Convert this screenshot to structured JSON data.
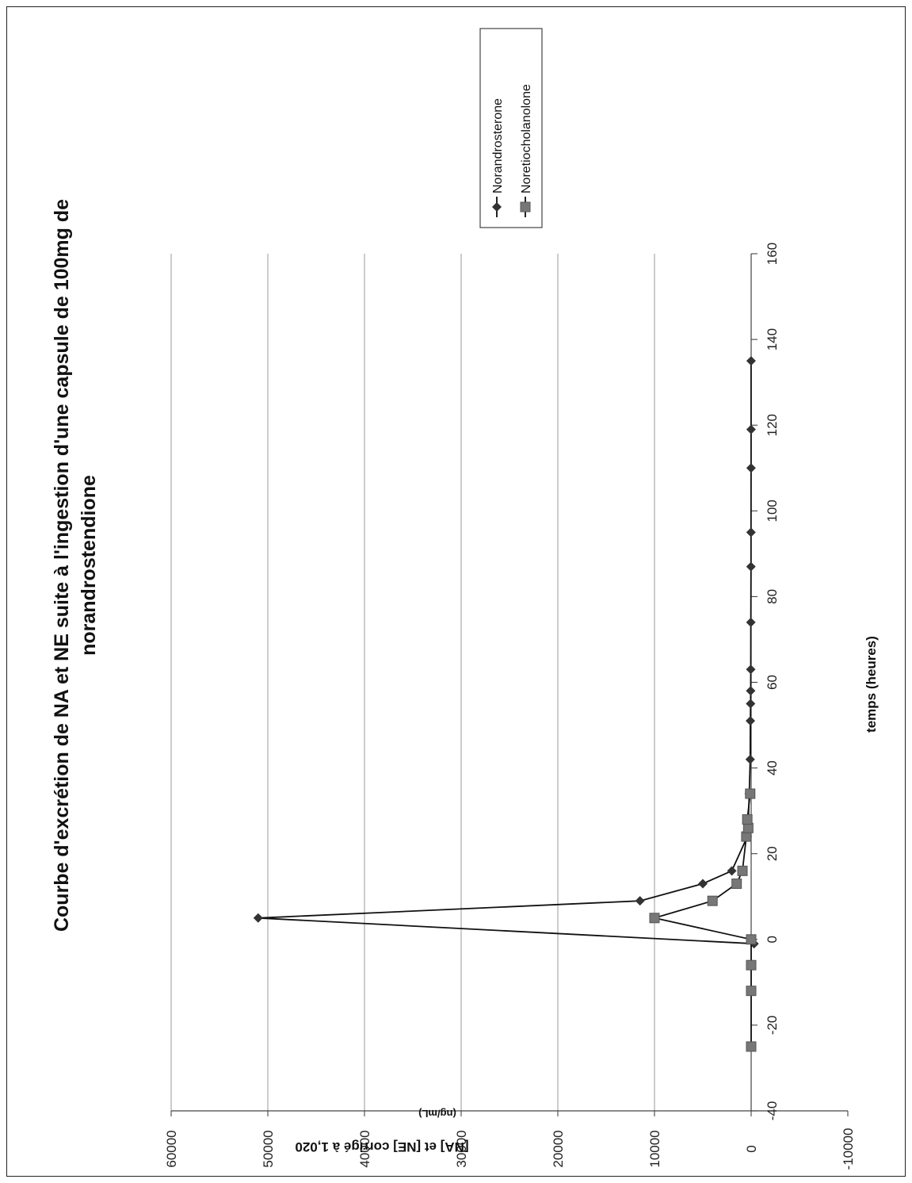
{
  "chart_data": {
    "type": "scatter",
    "orientation_note": "rotated 90 degrees",
    "title": "Courbe d'excrétion de NA et NE suite à l'ingestion d'une capsule de 100mg de norandrostendione",
    "title_lines": [
      "Courbe d'excrétion de NA et NE suite à l'ingestion d'une capsule de 100mg de",
      "norandrostendione"
    ],
    "xlabel": "temps (heures)",
    "ylabel": "[NA] et [NE] corrigé à 1,020",
    "ylabel_unit": "(ng/mL)",
    "xlim": [
      -40,
      160
    ],
    "ylim": [
      -10000,
      60000
    ],
    "x_ticks": [
      "-40",
      "-20",
      "0",
      "20",
      "40",
      "60",
      "80",
      "100",
      "120",
      "140",
      "160"
    ],
    "y_ticks": [
      "-10000",
      "0",
      "10000",
      "20000",
      "30000",
      "40000",
      "50000",
      "60000"
    ],
    "grid": true,
    "legend_position": "top-right",
    "series": [
      {
        "name": "Norandrosterone",
        "marker": "diamond",
        "color": "#333333",
        "x": [
          -1,
          5,
          9,
          13,
          16,
          24,
          27,
          34,
          42,
          51,
          55,
          58,
          63,
          74,
          87,
          95,
          110,
          119,
          135
        ],
        "y": [
          -300,
          51000,
          11500,
          5000,
          2000,
          400,
          300,
          200,
          100,
          80,
          60,
          50,
          40,
          30,
          20,
          15,
          10,
          8,
          5
        ]
      },
      {
        "name": "Noretiocholanolone",
        "marker": "square",
        "color": "#777777",
        "x": [
          -25,
          -12,
          -6,
          0,
          5,
          9,
          13,
          16,
          24,
          26,
          28,
          34
        ],
        "y": [
          0,
          0,
          0,
          0,
          10000,
          4000,
          1500,
          900,
          500,
          300,
          400,
          100
        ]
      }
    ]
  }
}
